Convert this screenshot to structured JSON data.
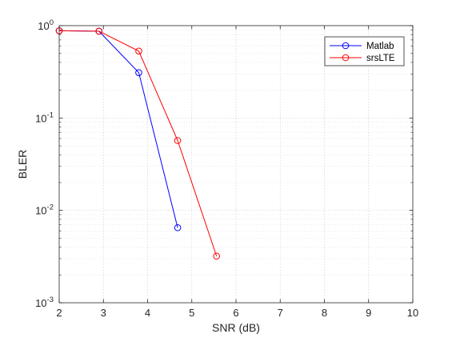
{
  "chart_data": {
    "type": "line",
    "title": "",
    "xlabel": "SNR (dB)",
    "ylabel": "BLER",
    "xlim": [
      2,
      10
    ],
    "ylim": [
      0.001,
      1
    ],
    "yscale": "log",
    "xticks": [
      2,
      3,
      4,
      5,
      6,
      7,
      8,
      9,
      10
    ],
    "xtick_labels": [
      "2",
      "3",
      "4",
      "5",
      "6",
      "7",
      "8",
      "9",
      "10"
    ],
    "yticks": [
      {
        "value": 0.001,
        "base": "10",
        "exp": "-3"
      },
      {
        "value": 0.01,
        "base": "10",
        "exp": "-2"
      },
      {
        "value": 0.1,
        "base": "10",
        "exp": "-1"
      },
      {
        "value": 1,
        "base": "10",
        "exp": "0"
      }
    ],
    "grid": true,
    "minor_grid": true,
    "legend_position": "top-right",
    "series": [
      {
        "name": "Matlab",
        "color": "#0000ff",
        "marker": "circle",
        "x": [
          2.0,
          2.9,
          3.8,
          4.68
        ],
        "y": [
          0.88,
          0.87,
          0.31,
          0.0065
        ]
      },
      {
        "name": "srsLTE",
        "color": "#ff0000",
        "marker": "circle",
        "x": [
          2.0,
          2.9,
          3.8,
          4.68,
          5.56
        ],
        "y": [
          0.88,
          0.87,
          0.53,
          0.057,
          0.0032
        ]
      }
    ]
  }
}
